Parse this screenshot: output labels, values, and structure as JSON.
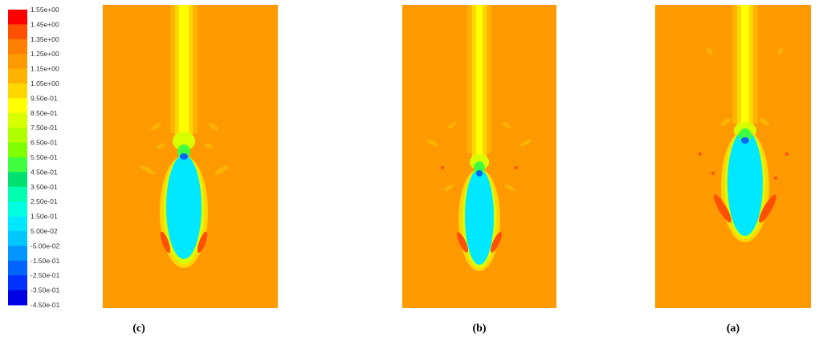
{
  "chart_data": {
    "type": "heatmap",
    "colorbar": {
      "labels": [
        "1.55e+00",
        "1.45e+00",
        "1.35e+00",
        "1.25e+00",
        "1.15e+00",
        "1.05e+00",
        "9.50e-01",
        "8.50e-01",
        "7.50e-01",
        "6.50e-01",
        "5.50e-01",
        "4.50e-01",
        "3.50e-01",
        "2.50e-01",
        "1.50e-01",
        "5.00e-02",
        "-5.00e-02",
        "-1.50e-01",
        "-2.50e-01",
        "-3.50e-01",
        "-4.50e-01"
      ],
      "colors": [
        "#ff0000",
        "#ff5000",
        "#ff7f00",
        "#ff9900",
        "#ffb300",
        "#ffd700",
        "#ffff00",
        "#d8ff00",
        "#b0ff00",
        "#80ff00",
        "#40ff40",
        "#00e070",
        "#00ffb0",
        "#00ffe0",
        "#00e8ff",
        "#00c8ff",
        "#0096ff",
        "#0064ff",
        "#0032ff",
        "#0000e6"
      ],
      "colors_note_omitted": false
    },
    "panels": [
      {
        "id": "c",
        "caption": "(c)",
        "background_value": 1.3,
        "bubble_value": 0.1
      },
      {
        "id": "b",
        "caption": "(b)",
        "background_value": 1.3,
        "bubble_value": 0.1
      },
      {
        "id": "a",
        "caption": "(a)",
        "background_value": 1.3,
        "bubble_value": 0.1
      }
    ]
  }
}
